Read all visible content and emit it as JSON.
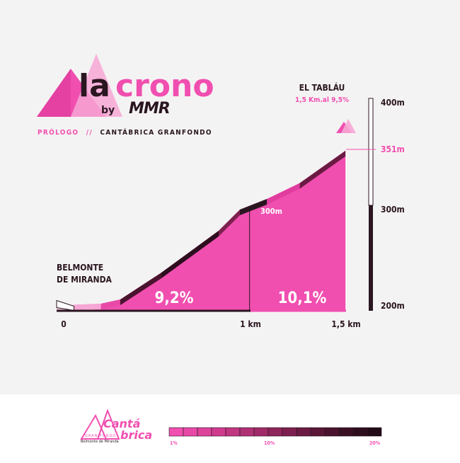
{
  "logo": {
    "brand_la": "la",
    "brand_crono": "crono",
    "by": "by",
    "sponsor": "MMR"
  },
  "subtitle": {
    "stage": "PRÓLOGO",
    "separator": "//",
    "event": "CANTÁBRICA GRANFONDO"
  },
  "summit": {
    "name": "EL TABLÁU",
    "info": "1,5 Km.al 9,5%"
  },
  "start": {
    "line1": "BELMONTE",
    "line2": "DE MIRANDA"
  },
  "colors": {
    "pink": "#f04fb0",
    "dark": "#2a1620",
    "background": "#f4f3f3"
  },
  "chart_data": {
    "type": "area",
    "title": "",
    "xlabel": "",
    "ylabel": "",
    "x_ticks": [
      "0",
      "1 km",
      "1,5 km"
    ],
    "y_ticks": [
      "400m",
      "351m",
      "300m",
      "200m"
    ],
    "ylim": [
      200,
      400
    ],
    "xlim": [
      0,
      1.5
    ],
    "profile": {
      "x": [
        0,
        0.09,
        0.23,
        0.33,
        0.54,
        0.84,
        0.95,
        1.09,
        1.26,
        1.5
      ],
      "y": [
        205,
        205,
        206,
        210,
        235,
        275,
        295,
        305,
        320,
        351
      ]
    },
    "gradient_labels": [
      {
        "label": "9,2%",
        "from_km": 0,
        "to_km": 1
      },
      {
        "label": "10,1%",
        "from_km": 1,
        "to_km": 1.5
      }
    ],
    "annotations": [
      {
        "label": "300m",
        "x_km": 1
      }
    ],
    "summit_marker": "351m"
  },
  "footer": {
    "event_logo_line1": "Cantá",
    "event_logo_line2": "brica",
    "event_logo_small1": "GRAN FONDO",
    "event_logo_small2": "Belmonte de Miranda",
    "legend_labels": [
      "1%",
      "10%",
      "20%"
    ],
    "legend_colors": [
      "#f04fb0",
      "#e849a6",
      "#dd439b",
      "#cf3c8e",
      "#c03681",
      "#b03074",
      "#9f2a67",
      "#8e255b",
      "#7d204f",
      "#6b1b43",
      "#5a1738",
      "#4a132e",
      "#3b1025",
      "#2e0d1e",
      "#220a17"
    ]
  }
}
